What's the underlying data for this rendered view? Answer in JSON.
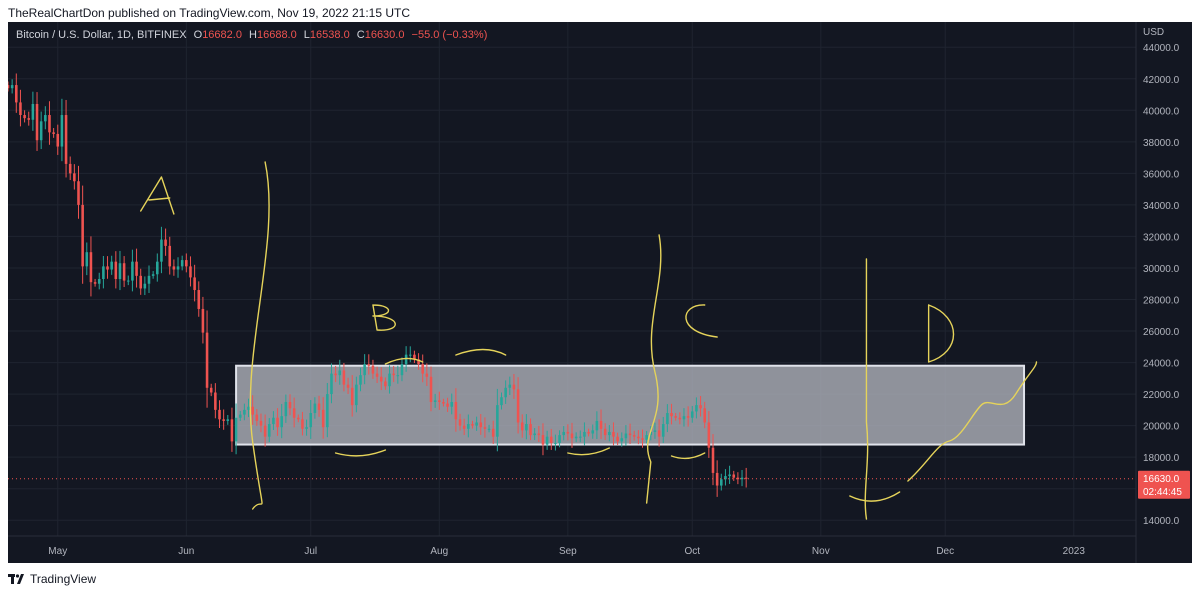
{
  "header": {
    "publisher_line": "TheRealChartDon published on TradingView.com, Nov 19, 2022 21:15 UTC"
  },
  "legend": {
    "symbol": "Bitcoin / U.S. Dollar, 1D, BITFINEX",
    "open_label": "O",
    "open": "16682.0",
    "high_label": "H",
    "high": "16688.0",
    "low_label": "L",
    "low": "16538.0",
    "close_label": "C",
    "close": "16630.0",
    "change": "−55.0 (−0.33%)"
  },
  "footer": {
    "brand": "TradingView"
  },
  "colors": {
    "background": "#131722",
    "grid": "#1f2430",
    "up": "#26a69a",
    "down": "#ef5350",
    "zone_fill": "#b2b5be",
    "zone_stroke": "#e0e3eb",
    "annotation": "#e5d35a",
    "text": "#b2b5be"
  },
  "chart_data": {
    "type": "candlestick",
    "currency": "USD",
    "y_axis_unit": "USD",
    "ylim": [
      13000,
      45600
    ],
    "xlim": [
      "2022-04-19",
      "2023-01-16"
    ],
    "y_ticks": [
      "14000.0",
      "16000.0",
      "18000.0",
      "20000.0",
      "22000.0",
      "24000.0",
      "26000.0",
      "28000.0",
      "30000.0",
      "32000.0",
      "34000.0",
      "36000.0",
      "38000.0",
      "40000.0",
      "42000.0",
      "44000.0"
    ],
    "x_ticks": [
      {
        "label": "May",
        "date": "2022-05-01"
      },
      {
        "label": "Jun",
        "date": "2022-06-01"
      },
      {
        "label": "Jul",
        "date": "2022-07-01"
      },
      {
        "label": "Aug",
        "date": "2022-08-01"
      },
      {
        "label": "Sep",
        "date": "2022-09-01"
      },
      {
        "label": "Oct",
        "date": "2022-10-01"
      },
      {
        "label": "Nov",
        "date": "2022-11-01"
      },
      {
        "label": "Dec",
        "date": "2022-12-01"
      },
      {
        "label": "2023",
        "date": "2023-01-01"
      }
    ],
    "last_price": "16630.0",
    "countdown": "02:44:45",
    "closes_daily_start": "2022-04-19",
    "closes_daily": [
      41400,
      41600,
      40500,
      39700,
      39500,
      39400,
      40400,
      38100,
      39300,
      39700,
      38600,
      38500,
      37700,
      39700,
      36600,
      36000,
      35500,
      34000,
      30100,
      31000,
      29100,
      29000,
      29300,
      30100,
      29900,
      30400,
      29300,
      30300,
      29200,
      29200,
      30400,
      29500,
      28700,
      29000,
      29500,
      29600,
      30400,
      31800,
      31400,
      30100,
      29900,
      30100,
      30500,
      30100,
      29400,
      28600,
      27400,
      25900,
      22400,
      22100,
      21000,
      20400,
      20300,
      20400,
      19000,
      20500,
      20700,
      21000,
      21200,
      20700,
      20300,
      20000,
      19300,
      20100,
      20500,
      19900,
      20600,
      21500,
      21100,
      20500,
      20400,
      19800,
      19900,
      20800,
      21400,
      21000,
      19900,
      22000,
      23300,
      23200,
      23500,
      22600,
      22400,
      21300,
      22600,
      23200,
      23900,
      23800,
      23300,
      23100,
      22800,
      22500,
      23300,
      23200,
      23200,
      23900,
      24500,
      24500,
      24200,
      23900,
      23300,
      23100,
      21500,
      21600,
      21500,
      21400,
      21200,
      21500,
      20400,
      20000,
      19800,
      20100,
      20000,
      20200,
      19900,
      19800,
      19800,
      19300,
      21300,
      21800,
      22400,
      22600,
      22300,
      20200,
      19700,
      20100,
      19400,
      19500,
      19400,
      18800,
      19300,
      18900,
      18900,
      19400,
      19600,
      19500,
      19200,
      19300,
      19300,
      19600,
      19500,
      19700,
      20300,
      19800,
      19400,
      19600,
      19300,
      19000,
      19200,
      19500,
      19400,
      19300,
      19200,
      19100,
      19400,
      19600,
      19700,
      19300,
      20100,
      20800,
      20600,
      20500,
      20400,
      20600,
      20500,
      20900,
      21300,
      21100,
      20200,
      18600,
      17000,
      16200,
      16600,
      16800,
      16900,
      16700,
      16600,
      16700,
      16630
    ]
  },
  "annotations": {
    "zone_low": 18800,
    "zone_high": 23800,
    "letters": [
      "A",
      "B",
      "C",
      "D"
    ]
  }
}
